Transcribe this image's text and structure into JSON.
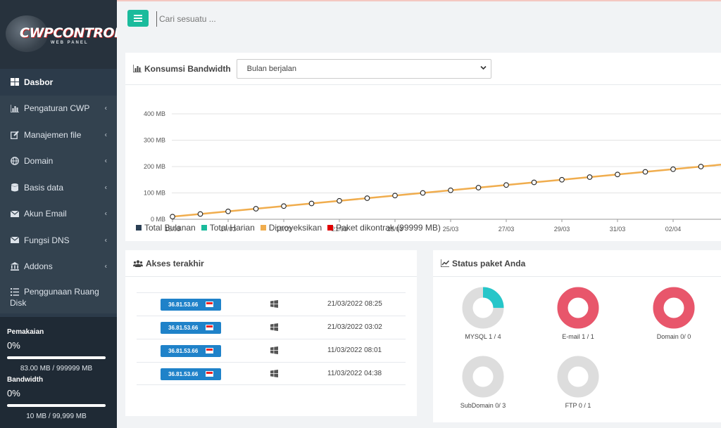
{
  "sidebar": {
    "logo": {
      "main": "CWPCONTROL",
      "sub": "WEB PANEL"
    },
    "items": [
      {
        "label": "Dasbor",
        "icon": "dashboard-icon",
        "active": true,
        "chevron": ""
      },
      {
        "label": "Pengaturan CWP",
        "icon": "chart-icon",
        "chevron": "‹"
      },
      {
        "label": "Manajemen file",
        "icon": "edit-icon",
        "chevron": "‹"
      },
      {
        "label": "Domain",
        "icon": "globe-icon",
        "chevron": "‹"
      },
      {
        "label": "Basis data",
        "icon": "database-icon",
        "chevron": "‹"
      },
      {
        "label": "Akun Email",
        "icon": "envelope-icon",
        "chevron": "‹"
      },
      {
        "label": "Fungsi DNS",
        "icon": "envelope-icon",
        "chevron": "‹"
      },
      {
        "label": "Addons",
        "icon": "bank-icon",
        "chevron": "‹"
      },
      {
        "label": "Penggunaan Ruang Disk",
        "icon": "list-icon",
        "chevron": ""
      }
    ],
    "usage": {
      "disk_label": "Pemakaian",
      "disk_pct": "0%",
      "disk_fraction": 0,
      "disk_size": "83.00 MB / 999999 MB",
      "bw_label": "Bandwidth",
      "bw_pct": "0%",
      "bw_fraction": 0,
      "bw_size": "10 MB / 99,999 MB"
    }
  },
  "topbar": {
    "search_placeholder": "Cari sesuatu ..."
  },
  "bandwidth": {
    "title": "Konsumsi Bandwidth",
    "select_value": "Bulan berjalan",
    "legend": [
      {
        "label": "Total Bulanan",
        "color": "#2a3f54"
      },
      {
        "label": "Total Harian",
        "color": "#1abb9c"
      },
      {
        "label": "Diproyeksikan",
        "color": "#f0ad4e"
      },
      {
        "label": "Paket dikontrak (99999 MB)",
        "color": "#e00000"
      }
    ]
  },
  "chart_data": {
    "type": "line",
    "title": "Konsumsi Bandwidth",
    "y_ticks": [
      "0 MB",
      "100 MB",
      "200 MB",
      "300 MB",
      "400 MB"
    ],
    "ylim": [
      0,
      400
    ],
    "x_ticks": [
      "15/03",
      "17/03",
      "19/03",
      "21/03",
      "23/03",
      "25/03",
      "27/03",
      "29/03",
      "31/03",
      "02/04"
    ],
    "series": [
      {
        "name": "Diproyeksikan",
        "color": "#f0ad4e",
        "x": [
          "15/03",
          "16/03",
          "17/03",
          "18/03",
          "19/03",
          "20/03",
          "21/03",
          "22/03",
          "23/03",
          "24/03",
          "25/03",
          "26/03",
          "27/03",
          "28/03",
          "29/03",
          "30/03",
          "31/03",
          "01/04",
          "02/04",
          "03/04"
        ],
        "values": [
          10,
          20,
          30,
          40,
          50,
          60,
          70,
          80,
          90,
          100,
          110,
          120,
          130,
          140,
          150,
          160,
          170,
          180,
          190,
          200
        ]
      }
    ],
    "grid": true,
    "legend_position": "bottom"
  },
  "access": {
    "title": "Akses terakhir",
    "rows": [
      {
        "ip": "36.81.53.66",
        "os": "windows-icon",
        "date": "21/03/2022 08:25"
      },
      {
        "ip": "36.81.53.66",
        "os": "windows-icon",
        "date": "21/03/2022 03:02"
      },
      {
        "ip": "36.81.53.66",
        "os": "windows-icon",
        "date": "11/03/2022 08:01"
      },
      {
        "ip": "36.81.53.66",
        "os": "windows-icon",
        "date": "11/03/2022 04:38"
      }
    ]
  },
  "status": {
    "title": "Status paket Anda",
    "items": [
      {
        "label": "MYSQL 1 / 4",
        "fraction": 0.25,
        "color": "#26c6c9"
      },
      {
        "label": "E-mail 1 / 1",
        "fraction": 1,
        "color": "#e8566b"
      },
      {
        "label": "Domain 0/ 0",
        "fraction": 1,
        "color": "#e8566b"
      },
      {
        "label": "SubDomain 0/ 3",
        "fraction": 0,
        "color": "#26c6c9"
      },
      {
        "label": "FTP 0 / 1",
        "fraction": 0,
        "color": "#26c6c9"
      }
    ]
  }
}
